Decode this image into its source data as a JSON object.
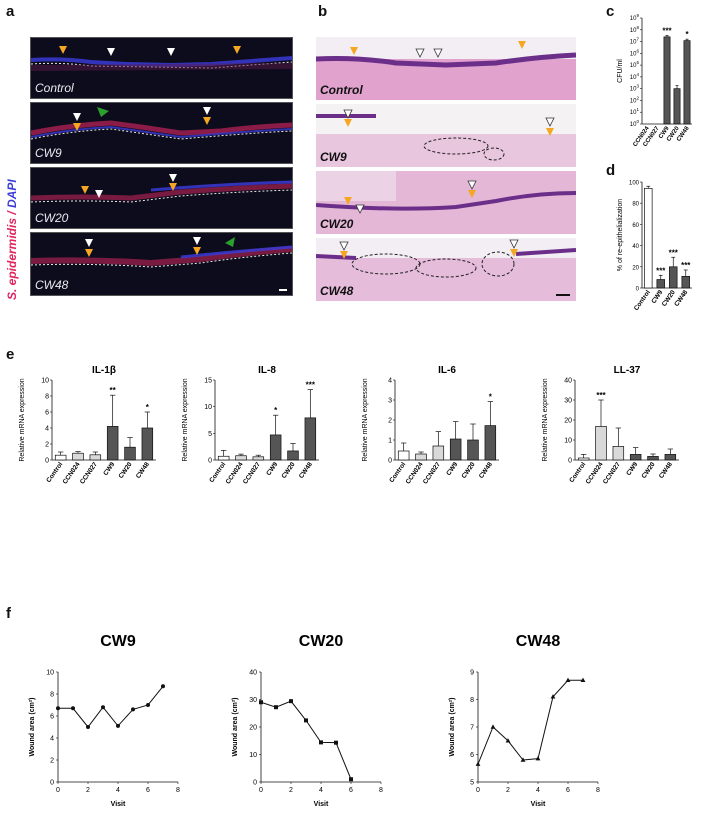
{
  "panel_labels": {
    "a": "a",
    "b": "b",
    "c": "c",
    "d": "d",
    "e": "e",
    "f": "f"
  },
  "panel_a": {
    "stain_label": "S. epidermidis",
    "stain_sep": " / ",
    "dapi_label": "DAPI",
    "colors": {
      "stain": "#e0245e",
      "dapi": "#3b3bd6",
      "arrow_orange": "#f5a623",
      "arrow_white": "#ffffff",
      "arrow_green": "#2ca02c"
    },
    "images": [
      "Control",
      "CW9",
      "CW20",
      "CW48"
    ]
  },
  "panel_b": {
    "images": [
      "Control",
      "CW9",
      "CW20",
      "CW48"
    ]
  },
  "chart_data": [
    {
      "id": "c",
      "type": "bar",
      "ylabel": "CFU/ml",
      "yscale": "log",
      "ylim": [
        1,
        1000000000
      ],
      "yticks": [
        "10^0",
        "10^1",
        "10^2",
        "10^3",
        "10^4",
        "10^5",
        "10^6",
        "10^7",
        "10^8",
        "10^9"
      ],
      "categories": [
        "CCN024",
        "CCN027",
        "CW9",
        "CW20",
        "CW48"
      ],
      "values": [
        0,
        0,
        25000000,
        1000,
        12000000
      ],
      "errors": [
        0,
        0,
        8000000,
        800,
        4000000
      ],
      "significance": [
        "",
        "",
        "***",
        "",
        "*"
      ],
      "colors": [
        "#ffffff",
        "#ffffff",
        "#555555",
        "#555555",
        "#555555"
      ]
    },
    {
      "id": "d",
      "type": "bar",
      "ylabel": "% of re-epithelialization",
      "ylim": [
        0,
        100
      ],
      "yticks": [
        0,
        20,
        40,
        60,
        80,
        100
      ],
      "categories": [
        "Control",
        "CW9",
        "CW20",
        "CW48"
      ],
      "values": [
        94,
        8,
        20,
        11
      ],
      "errors": [
        2,
        4,
        9,
        6
      ],
      "significance": [
        "",
        "***",
        "***",
        "***"
      ],
      "colors": [
        "#ffffff",
        "#555555",
        "#555555",
        "#555555"
      ]
    },
    {
      "id": "e1",
      "type": "bar",
      "title": "IL-1β",
      "ylabel": "Relative mRNA expression",
      "ylim": [
        0,
        10
      ],
      "yticks": [
        0,
        2,
        4,
        6,
        8,
        10
      ],
      "categories": [
        "Control",
        "CCN024",
        "CCN027",
        "CW9",
        "CW20",
        "CW48"
      ],
      "values": [
        0.6,
        0.85,
        0.65,
        4.2,
        1.6,
        4.0
      ],
      "errors": [
        0.4,
        0.2,
        0.35,
        3.9,
        1.2,
        2.0
      ],
      "significance": [
        "",
        "",
        "",
        "**",
        "",
        "*"
      ],
      "colors": [
        "#ffffff",
        "#d9d9d9",
        "#d9d9d9",
        "#555555",
        "#555555",
        "#555555"
      ]
    },
    {
      "id": "e2",
      "type": "bar",
      "title": "IL-8",
      "ylabel": "Relative mRNA expression",
      "ylim": [
        0,
        15
      ],
      "yticks": [
        0,
        5,
        10,
        15
      ],
      "categories": [
        "Control",
        "CCN024",
        "CCN027",
        "CW9",
        "CW20",
        "CW48"
      ],
      "values": [
        0.7,
        0.8,
        0.6,
        4.7,
        1.7,
        7.9
      ],
      "errors": [
        1.1,
        0.3,
        0.3,
        3.7,
        1.4,
        5.3
      ],
      "significance": [
        "",
        "",
        "",
        "*",
        "",
        "***"
      ],
      "colors": [
        "#ffffff",
        "#d9d9d9",
        "#d9d9d9",
        "#555555",
        "#555555",
        "#555555"
      ]
    },
    {
      "id": "e3",
      "type": "bar",
      "title": "IL-6",
      "ylabel": "Relative mRNA expression",
      "ylim": [
        0,
        4
      ],
      "yticks": [
        0,
        1,
        2,
        3,
        4
      ],
      "categories": [
        "Control",
        "CCN024",
        "CCN027",
        "CW9",
        "CW20",
        "CW48"
      ],
      "values": [
        0.45,
        0.3,
        0.7,
        1.05,
        1.0,
        1.72
      ],
      "errors": [
        0.4,
        0.1,
        0.72,
        0.87,
        0.8,
        1.2
      ],
      "significance": [
        "",
        "",
        "",
        "",
        "",
        "*"
      ],
      "colors": [
        "#ffffff",
        "#d9d9d9",
        "#d9d9d9",
        "#555555",
        "#555555",
        "#555555"
      ]
    },
    {
      "id": "e4",
      "type": "bar",
      "title": "LL-37",
      "ylabel": "Relative mRNA expression",
      "ylim": [
        0,
        40
      ],
      "yticks": [
        0,
        10,
        20,
        30,
        40
      ],
      "categories": [
        "Control",
        "CCN024",
        "CCN027",
        "CW9",
        "CW20",
        "CW48"
      ],
      "values": [
        1.0,
        16.8,
        6.8,
        2.8,
        1.8,
        2.8
      ],
      "errors": [
        1.8,
        13.2,
        9.2,
        3.4,
        1.2,
        2.7
      ],
      "significance": [
        "",
        "***",
        "",
        "",
        "",
        ""
      ],
      "colors": [
        "#ffffff",
        "#d9d9d9",
        "#d9d9d9",
        "#555555",
        "#555555",
        "#555555"
      ]
    },
    {
      "id": "f1",
      "type": "line",
      "title": "CW9",
      "xlabel": "Visit",
      "ylabel": "Wound area (cm²)",
      "xlim": [
        0,
        8
      ],
      "ylim": [
        0,
        10
      ],
      "xticks": [
        0,
        2,
        4,
        6,
        8
      ],
      "yticks": [
        0,
        2,
        4,
        6,
        8,
        10
      ],
      "marker": "circle",
      "x": [
        0,
        1,
        2,
        3,
        4,
        5,
        6,
        7
      ],
      "y": [
        6.7,
        6.7,
        5.0,
        6.8,
        5.1,
        6.6,
        7.0,
        8.7
      ]
    },
    {
      "id": "f2",
      "type": "line",
      "title": "CW20",
      "xlabel": "Visit",
      "ylabel": "Wound area (cm²)",
      "xlim": [
        0,
        8
      ],
      "ylim": [
        0,
        40
      ],
      "xticks": [
        0,
        2,
        4,
        6,
        8
      ],
      "yticks": [
        0,
        10,
        20,
        30,
        40
      ],
      "marker": "square",
      "x": [
        0,
        1,
        2,
        3,
        4,
        5,
        6
      ],
      "y": [
        29.0,
        27.2,
        29.4,
        22.4,
        14.4,
        14.3,
        1.0
      ]
    },
    {
      "id": "f3",
      "type": "line",
      "title": "CW48",
      "xlabel": "Visit",
      "ylabel": "Wound area (cm²)",
      "xlim": [
        0,
        8
      ],
      "ylim": [
        5,
        9
      ],
      "xticks": [
        0,
        2,
        4,
        6,
        8
      ],
      "yticks": [
        5,
        6,
        7,
        8,
        9
      ],
      "marker": "triangle",
      "x": [
        0,
        1,
        2,
        3,
        4,
        5,
        6,
        7
      ],
      "y": [
        5.65,
        7.0,
        6.5,
        5.8,
        5.85,
        8.1,
        8.7,
        8.7
      ]
    }
  ]
}
